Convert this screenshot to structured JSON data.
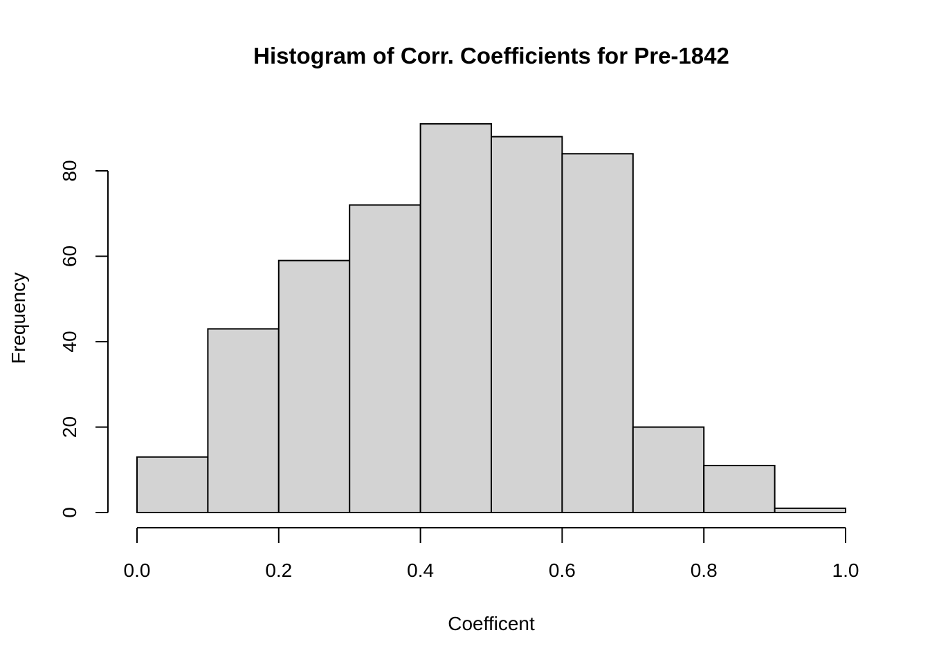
{
  "chart_data": {
    "type": "bar",
    "title": "Histogram of Corr. Coefficients for Pre-1842",
    "xlabel": "Coefficent",
    "ylabel": "Frequency",
    "bins": [
      {
        "start": 0.0,
        "end": 0.1,
        "count": 13
      },
      {
        "start": 0.1,
        "end": 0.2,
        "count": 43
      },
      {
        "start": 0.2,
        "end": 0.3,
        "count": 59
      },
      {
        "start": 0.3,
        "end": 0.4,
        "count": 72
      },
      {
        "start": 0.4,
        "end": 0.5,
        "count": 91
      },
      {
        "start": 0.5,
        "end": 0.6,
        "count": 88
      },
      {
        "start": 0.6,
        "end": 0.7,
        "count": 84
      },
      {
        "start": 0.7,
        "end": 0.8,
        "count": 20
      },
      {
        "start": 0.8,
        "end": 0.9,
        "count": 11
      },
      {
        "start": 0.9,
        "end": 1.0,
        "count": 1
      }
    ],
    "xlim": [
      0.0,
      1.0
    ],
    "ylim": [
      0,
      91
    ],
    "x_ticks": [
      0.0,
      0.2,
      0.4,
      0.6,
      0.8,
      1.0
    ],
    "x_tick_labels": [
      "0.0",
      "0.2",
      "0.4",
      "0.6",
      "0.8",
      "1.0"
    ],
    "y_ticks": [
      0,
      20,
      40,
      60,
      80
    ],
    "y_tick_labels": [
      "0",
      "20",
      "40",
      "60",
      "80"
    ],
    "grid": false,
    "bar_color": "#d3d3d3",
    "edge_color": "#000000"
  }
}
